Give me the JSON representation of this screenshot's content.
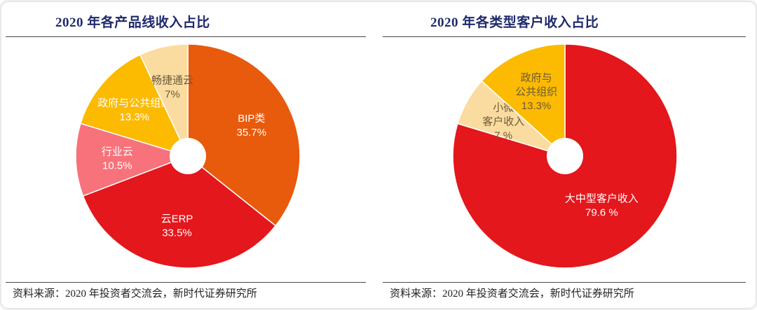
{
  "chart_data": [
    {
      "type": "pie",
      "title": "2020 年各产品线收入占比",
      "donut": true,
      "slices": [
        {
          "label": "BIP类",
          "value": 35.7,
          "display": "35.7%",
          "color": "#E85A0C",
          "label_color": "#ffffff"
        },
        {
          "label": "云ERP",
          "value": 33.5,
          "display": "33.5%",
          "color": "#E3171C",
          "label_color": "#ffffff"
        },
        {
          "label": "行业云",
          "value": 10.5,
          "display": "10.5%",
          "color": "#F7727A",
          "label_color": "#ffffff"
        },
        {
          "label": "政府与公共组织",
          "value": 13.3,
          "display": "13.3%",
          "color": "#FCBA00",
          "label_color": "#ffffff"
        },
        {
          "label": "畅捷通云",
          "value": 7,
          "display": "7%",
          "color": "#FBDCA0",
          "label_color": "#6b5a3a"
        }
      ],
      "source": "资料来源：2020 年投资者交流会，新时代证券研究所"
    },
    {
      "type": "pie",
      "title": "2020 年各类型客户收入占比",
      "donut": true,
      "slices": [
        {
          "label": "大中型客户收入",
          "value": 79.6,
          "display": "79.6 %",
          "color": "#E3171C",
          "label_color": "#ffffff"
        },
        {
          "label": "小微客户收入",
          "lines": [
            "小微",
            "客户收入"
          ],
          "value": 7,
          "display": "7 %",
          "color": "#FBDCA0",
          "label_color": "#6b5a3a"
        },
        {
          "label": "政府与公共组织",
          "lines": [
            "政府与",
            "公共组织"
          ],
          "value": 13.3,
          "display": "13.3%",
          "color": "#FCBA00",
          "label_color": "#6b5a3a"
        }
      ],
      "source": "资料来源：2020 年投资者交流会，新时代证券研究所"
    }
  ]
}
